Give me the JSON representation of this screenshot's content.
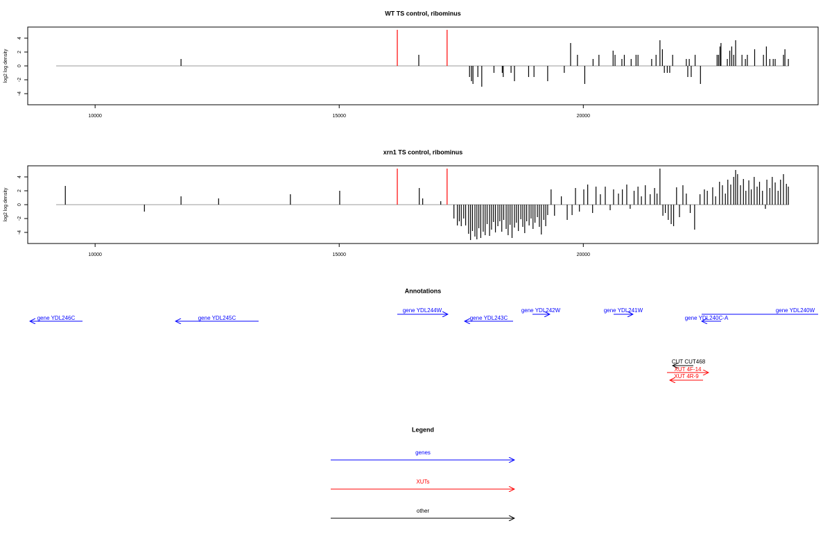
{
  "chart_data": [
    {
      "type": "bar",
      "title": "WT TS control, ribominus",
      "y_label": "log2 log density",
      "x": [
        11760,
        16630,
        17670,
        17710,
        17740,
        17840,
        17920,
        18170,
        18340,
        18360,
        18520,
        18590,
        18880,
        18990,
        19270,
        19610,
        19740,
        19880,
        20030,
        20200,
        20320,
        20610,
        20650,
        20790,
        20840,
        20980,
        21080,
        21120,
        21400,
        21490,
        21570,
        21620,
        21660,
        21720,
        21770,
        21830,
        22110,
        22140,
        22170,
        22210,
        22290,
        22400,
        22740,
        22770,
        22800,
        22820,
        22950,
        23000,
        23040,
        23080,
        23120,
        23250,
        23320,
        23360,
        23510,
        23690,
        23750,
        23820,
        23890,
        23930,
        24100,
        24130,
        24200
      ],
      "values": [
        1.0,
        1.6,
        -1.6,
        -2.2,
        -2.6,
        -1.6,
        -3.0,
        -1.0,
        -1.0,
        -1.6,
        -1.0,
        -2.2,
        -1.6,
        -1.6,
        -2.2,
        -1.0,
        3.3,
        1.6,
        -2.6,
        1.0,
        1.6,
        2.2,
        1.6,
        1.0,
        1.6,
        1.0,
        1.6,
        1.6,
        1.0,
        1.6,
        3.7,
        2.4,
        -1.0,
        -1.0,
        -1.0,
        1.6,
        1.0,
        -1.6,
        1.0,
        -1.6,
        1.6,
        -2.6,
        1.6,
        1.6,
        2.8,
        3.3,
        1.0,
        2.2,
        2.8,
        1.6,
        3.7,
        1.6,
        1.0,
        1.6,
        2.4,
        1.6,
        2.8,
        1.0,
        1.0,
        1.0,
        1.6,
        2.4,
        1.0
      ],
      "color": "#000000",
      "markers": {
        "x": [
          16190,
          17210
        ],
        "values": [
          5.2,
          5.2
        ],
        "color": "#ff0000"
      },
      "xlim": [
        8620,
        24810
      ],
      "ylim": [
        -5.6,
        5.6
      ],
      "xticks": [
        10000,
        15000,
        20000
      ],
      "yticks": [
        -4,
        -2,
        0,
        2,
        4
      ]
    },
    {
      "type": "bar",
      "title": "xrn1 TS control, ribominus",
      "y_label": "log2 log density",
      "x": [
        9390,
        11010,
        11760,
        12530,
        14000,
        15010,
        16640,
        16710,
        17080,
        17350,
        17420,
        17460,
        17500,
        17550,
        17590,
        17650,
        17690,
        17730,
        17780,
        17820,
        17860,
        17900,
        17950,
        17990,
        18030,
        18080,
        18120,
        18160,
        18200,
        18250,
        18290,
        18330,
        18370,
        18420,
        18460,
        18500,
        18540,
        18590,
        18630,
        18670,
        18720,
        18760,
        18800,
        18840,
        18890,
        18930,
        18970,
        19010,
        19060,
        19100,
        19140,
        19190,
        19230,
        19270,
        19340,
        19410,
        19550,
        19670,
        19770,
        19840,
        19920,
        20010,
        20090,
        20190,
        20260,
        20350,
        20450,
        20550,
        20620,
        20720,
        20800,
        20890,
        20960,
        21040,
        21120,
        21190,
        21270,
        21370,
        21460,
        21510,
        21570,
        21630,
        21680,
        21740,
        21800,
        21850,
        21910,
        21970,
        22040,
        22110,
        22190,
        22280,
        22390,
        22480,
        22540,
        22650,
        22710,
        22790,
        22850,
        22910,
        22960,
        23020,
        23080,
        23120,
        23160,
        23220,
        23280,
        23330,
        23390,
        23440,
        23500,
        23560,
        23610,
        23670,
        23730,
        23760,
        23820,
        23870,
        23930,
        23990,
        24040,
        24100,
        24160,
        24200
      ],
      "values": [
        2.7,
        -1.0,
        1.2,
        0.9,
        1.5,
        2.0,
        2.4,
        0.9,
        0.5,
        -2.0,
        -3.0,
        -2.4,
        -3.1,
        -2.0,
        -3.0,
        -4.2,
        -5.1,
        -3.8,
        -4.6,
        -5.0,
        -3.4,
        -4.8,
        -3.9,
        -4.4,
        -2.8,
        -4.5,
        -3.6,
        -2.5,
        -4.0,
        -3.1,
        -2.4,
        -3.9,
        -2.2,
        -3.5,
        -4.4,
        -2.9,
        -4.8,
        -3.3,
        -2.6,
        -3.8,
        -2.1,
        -3.2,
        -4.1,
        -2.4,
        -3.0,
        -2.0,
        -3.5,
        -2.6,
        -1.8,
        -3.2,
        -4.3,
        -2.2,
        -3.1,
        -1.5,
        2.2,
        -1.6,
        1.2,
        -2.2,
        -1.5,
        2.4,
        -1.0,
        2.2,
        2.9,
        -1.2,
        2.6,
        1.5,
        2.6,
        -0.8,
        2.2,
        1.6,
        2.2,
        2.9,
        -0.6,
        2.0,
        2.6,
        1.2,
        2.8,
        1.5,
        2.4,
        1.6,
        5.2,
        -1.6,
        -1.2,
        -2.2,
        -2.8,
        -3.1,
        2.5,
        -1.8,
        2.8,
        1.6,
        -1.2,
        -3.6,
        1.5,
        2.2,
        2.0,
        2.5,
        1.2,
        3.3,
        2.8,
        1.6,
        3.6,
        2.9,
        4.0,
        5.0,
        4.4,
        2.8,
        3.7,
        2.0,
        3.5,
        2.2,
        4.0,
        2.6,
        3.3,
        2.0,
        -0.6,
        3.6,
        2.4,
        4.0,
        3.2,
        2.0,
        3.6,
        4.4,
        3.0,
        2.6
      ],
      "color": "#000000",
      "markers": {
        "x": [
          16190,
          17210
        ],
        "values": [
          5.2,
          5.2
        ],
        "color": "#ff0000"
      },
      "xlim": [
        8620,
        24810
      ],
      "ylim": [
        -5.6,
        5.6
      ],
      "xticks": [
        10000,
        15000,
        20000
      ],
      "yticks": [
        -4,
        -2,
        0,
        2,
        4
      ]
    }
  ],
  "annotations": {
    "title": "Annotations",
    "items": [
      "gene YDL246C",
      "gene YDL245C",
      "gene YDL244W",
      "gene YDL243C",
      "gene YDL242W",
      "gene YDL241W",
      "gene YDL240C-A",
      "gene YDL240W",
      "CUT CUT468",
      "XUT 4F-14",
      "XUT 4R-9"
    ]
  },
  "legend": {
    "title": "Legend",
    "items": [
      "genes",
      "XUTs",
      "other"
    ]
  }
}
